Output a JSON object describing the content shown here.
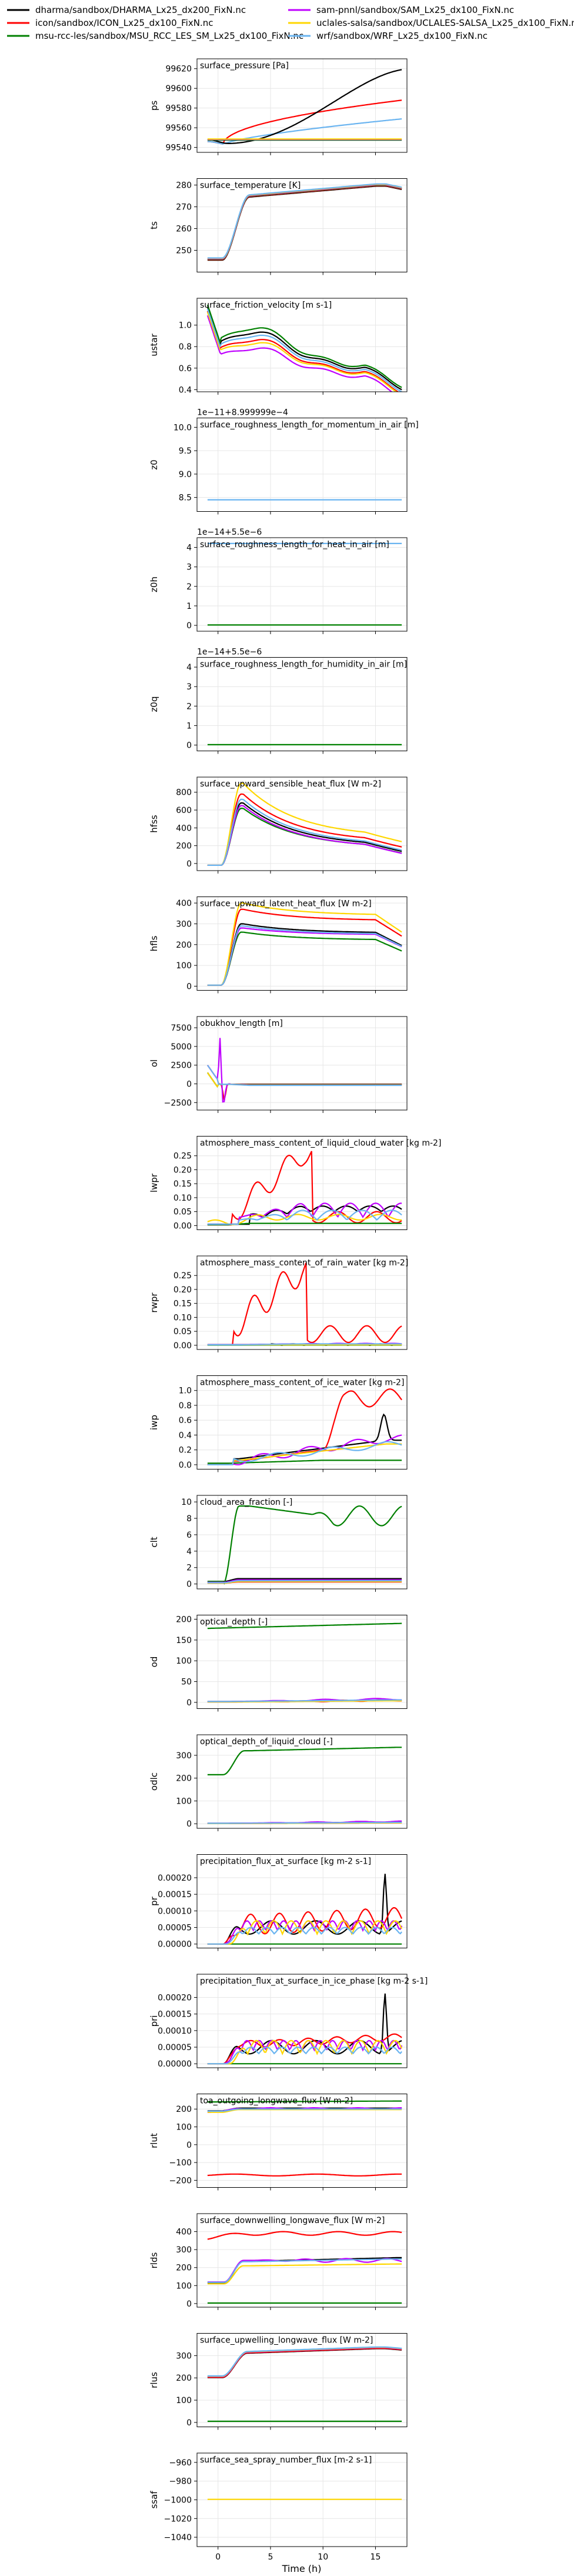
{
  "legend": [
    {
      "name": "dharma/sandbox/DHARMA_Lx25_dx200_FixN.nc",
      "color": "#000000"
    },
    {
      "name": "icon/sandbox/ICON_Lx25_dx100_FixN.nc",
      "color": "#ff0000"
    },
    {
      "name": "msu-rcc-les/sandbox/MSU_RCC_LES_SM_Lx25_dx100_FixN.nc",
      "color": "#008000"
    },
    {
      "name": "sam-pnnl/sandbox/SAM_Lx25_dx100_FixN.nc",
      "color": "#bf00ff"
    },
    {
      "name": "uclales-salsa/sandbox/UCLALES-SALSA_Lx25_dx100_FixN.nc",
      "color": "#ffd700"
    },
    {
      "name": "wrf/sandbox/WRF_Lx25_dx100_FixN.nc",
      "color": "#6ab4f0"
    }
  ],
  "x_axis": {
    "label": "Time (h)",
    "ticks": [
      0,
      5,
      10,
      15
    ],
    "range": [
      -2,
      18
    ]
  },
  "chart_data": [
    {
      "type": "line",
      "title": "surface_pressure [Pa]",
      "ylabel": "ps",
      "ylim": [
        99535,
        99630
      ],
      "yticks": [
        99540,
        99560,
        99580,
        99600,
        99620
      ],
      "tick_labels": [
        "99540",
        "99560",
        "99580",
        "99600",
        "99620"
      ],
      "offset": ""
    },
    {
      "type": "line",
      "title": "surface_temperature [K]",
      "ylabel": "ts",
      "ylim": [
        240,
        283
      ],
      "yticks": [
        250,
        260,
        270,
        280
      ],
      "tick_labels": [
        "250",
        "260",
        "270",
        "280"
      ],
      "offset": ""
    },
    {
      "type": "line",
      "title": "surface_friction_velocity [m s-1]",
      "ylabel": "ustar",
      "ylim": [
        0.38,
        1.25
      ],
      "yticks": [
        0.4,
        0.6,
        0.8,
        1.0
      ],
      "tick_labels": [
        "0.4",
        "0.6",
        "0.8",
        "1.0"
      ],
      "offset": ""
    },
    {
      "type": "line",
      "title": "surface_roughness_length_for_momentum_in_air [m]",
      "ylabel": "z0",
      "ylim": [
        8.2,
        10.2
      ],
      "yticks": [
        8.5,
        9.0,
        9.5,
        10.0
      ],
      "tick_labels": [
        "8.5",
        "9.0",
        "9.5",
        "10.0"
      ],
      "offset": "1e−11+8.999999e−4"
    },
    {
      "type": "line",
      "title": "surface_roughness_length_for_heat_in_air [m]",
      "ylabel": "z0h",
      "ylim": [
        -0.3,
        4.5
      ],
      "yticks": [
        0,
        1,
        2,
        3,
        4
      ],
      "tick_labels": [
        "0",
        "1",
        "2",
        "3",
        "4"
      ],
      "offset": "1e−14+5.5e−6"
    },
    {
      "type": "line",
      "title": "surface_roughness_length_for_humidity_in_air [m]",
      "ylabel": "z0q",
      "ylim": [
        -0.3,
        4.5
      ],
      "yticks": [
        0,
        1,
        2,
        3,
        4
      ],
      "tick_labels": [
        "0",
        "1",
        "2",
        "3",
        "4"
      ],
      "offset": "1e−14+5.5e−6"
    },
    {
      "type": "line",
      "title": "surface_upward_sensible_heat_flux [W m-2]",
      "ylabel": "hfss",
      "ylim": [
        -80,
        970
      ],
      "yticks": [
        0,
        200,
        400,
        600,
        800
      ],
      "tick_labels": [
        "0",
        "200",
        "400",
        "600",
        "800"
      ],
      "offset": ""
    },
    {
      "type": "line",
      "title": "surface_upward_latent_heat_flux [W m-2]",
      "ylabel": "hfls",
      "ylim": [
        -20,
        430
      ],
      "yticks": [
        0,
        100,
        200,
        300,
        400
      ],
      "tick_labels": [
        "0",
        "100",
        "200",
        "300",
        "400"
      ],
      "offset": ""
    },
    {
      "type": "line",
      "title": "obukhov_length [m]",
      "ylabel": "ol",
      "ylim": [
        -3500,
        9000
      ],
      "yticks": [
        -2500,
        0,
        2500,
        5000,
        7500
      ],
      "tick_labels": [
        "−2500",
        "0",
        "2500",
        "5000",
        "7500"
      ],
      "offset": ""
    },
    {
      "type": "line",
      "title": "atmosphere_mass_content_of_liquid_cloud_water [kg m-2]",
      "ylabel": "lwpr",
      "ylim": [
        -0.015,
        0.32
      ],
      "yticks": [
        0,
        0.05,
        0.1,
        0.15,
        0.2,
        0.25
      ],
      "tick_labels": [
        "0.00",
        "0.05",
        "0.10",
        "0.15",
        "0.20",
        "0.25"
      ],
      "offset": ""
    },
    {
      "type": "line",
      "title": "atmosphere_mass_content_of_rain_water [kg m-2]",
      "ylabel": "rwpr",
      "ylim": [
        -0.015,
        0.32
      ],
      "yticks": [
        0,
        0.05,
        0.1,
        0.15,
        0.2,
        0.25
      ],
      "tick_labels": [
        "0.00",
        "0.05",
        "0.10",
        "0.15",
        "0.20",
        "0.25"
      ],
      "offset": ""
    },
    {
      "type": "line",
      "title": "atmosphere_mass_content_of_ice_water [kg m-2]",
      "ylabel": "iwp",
      "ylim": [
        -0.06,
        1.2
      ],
      "yticks": [
        0,
        0.2,
        0.4,
        0.6,
        0.8,
        1.0
      ],
      "tick_labels": [
        "0.0",
        "0.2",
        "0.4",
        "0.6",
        "0.8",
        "1.0"
      ],
      "offset": ""
    },
    {
      "type": "line",
      "title": "cloud_area_fraction [-]",
      "ylabel": "clt",
      "ylim": [
        -0.6,
        10.8
      ],
      "yticks": [
        0,
        2,
        4,
        6,
        8,
        10
      ],
      "tick_labels": [
        "0",
        "2",
        "4",
        "6",
        "8",
        "10"
      ],
      "offset": ""
    },
    {
      "type": "line",
      "title": "optical_depth [-]",
      "ylabel": "od",
      "ylim": [
        -15,
        210
      ],
      "yticks": [
        0,
        50,
        100,
        150,
        200
      ],
      "tick_labels": [
        "0",
        "50",
        "100",
        "150",
        "200"
      ],
      "offset": ""
    },
    {
      "type": "line",
      "title": "optical_depth_of_liquid_cloud [-]",
      "ylabel": "odlc",
      "ylim": [
        -20,
        390
      ],
      "yticks": [
        0,
        100,
        200,
        300
      ],
      "tick_labels": [
        "0",
        "100",
        "200",
        "300"
      ],
      "offset": ""
    },
    {
      "type": "line",
      "title": "precipitation_flux_at_surface [kg m-2 s-1]",
      "ylabel": "pr",
      "ylim": [
        -1.2e-05,
        0.00027
      ],
      "yticks": [
        0,
        5e-05,
        0.0001,
        0.00015,
        0.0002
      ],
      "tick_labels": [
        "0.00000",
        "0.00005",
        "0.00010",
        "0.00015",
        "0.00020"
      ],
      "offset": ""
    },
    {
      "type": "line",
      "title": "precipitation_flux_at_surface_in_ice_phase [kg m-2 s-1]",
      "ylabel": "pri",
      "ylim": [
        -1.2e-05,
        0.00027
      ],
      "yticks": [
        0,
        5e-05,
        0.0001,
        0.00015,
        0.0002
      ],
      "tick_labels": [
        "0.00000",
        "0.00005",
        "0.00010",
        "0.00015",
        "0.00020"
      ],
      "offset": ""
    },
    {
      "type": "line",
      "title": "toa_outgoing_longwave_flux [W m-2]",
      "ylabel": "rlut",
      "ylim": [
        -240,
        285
      ],
      "yticks": [
        -200,
        -100,
        0,
        100,
        200
      ],
      "tick_labels": [
        "−200",
        "−100",
        "0",
        "100",
        "200"
      ],
      "offset": ""
    },
    {
      "type": "line",
      "title": "surface_downwelling_longwave_flux [W m-2]",
      "ylabel": "rlds",
      "ylim": [
        -20,
        500
      ],
      "yticks": [
        0,
        100,
        200,
        300,
        400
      ],
      "tick_labels": [
        "0",
        "100",
        "200",
        "300",
        "400"
      ],
      "offset": ""
    },
    {
      "type": "line",
      "title": "surface_upwelling_longwave_flux [W m-2]",
      "ylabel": "rlus",
      "ylim": [
        -20,
        400
      ],
      "yticks": [
        0,
        100,
        200,
        300
      ],
      "tick_labels": [
        "0",
        "100",
        "200",
        "300"
      ],
      "offset": ""
    },
    {
      "type": "line",
      "title": "surface_sea_spray_number_flux [m-2 s-1]",
      "ylabel": "ssaf",
      "ylim": [
        -1050,
        -950
      ],
      "yticks": [
        -1040,
        -1020,
        -1000,
        -980,
        -960
      ],
      "tick_labels": [
        "−1040",
        "−1020",
        "−1000",
        "−980",
        "−960"
      ],
      "offset": ""
    }
  ]
}
